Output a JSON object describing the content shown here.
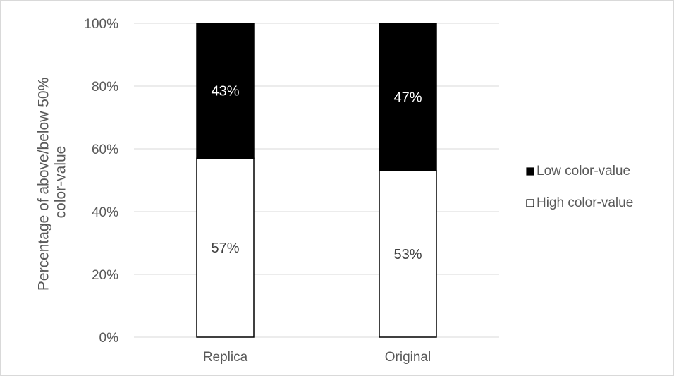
{
  "chart_data": {
    "type": "bar",
    "stacked": true,
    "categories": [
      "Replica",
      "Original"
    ],
    "series": [
      {
        "name": "High color-value",
        "values": [
          57,
          53
        ],
        "labels": [
          "57%",
          "53%"
        ],
        "color": "#ffffff"
      },
      {
        "name": "Low color-value",
        "values": [
          43,
          47
        ],
        "labels": [
          "43%",
          "47%"
        ],
        "color": "#000000"
      }
    ],
    "ylabel_lines": [
      "Percentage of above/below 50%",
      "color-value"
    ],
    "ylim": [
      0,
      100
    ],
    "yticks": [
      {
        "value": 0,
        "label": "0%"
      },
      {
        "value": 20,
        "label": "20%"
      },
      {
        "value": 40,
        "label": "40%"
      },
      {
        "value": 60,
        "label": "60%"
      },
      {
        "value": 80,
        "label": "80%"
      },
      {
        "value": 100,
        "label": "100%"
      }
    ],
    "grid": true,
    "legend_position": "right",
    "legend": [
      {
        "label": "Low color-value",
        "color": "#000000"
      },
      {
        "label": "High color-value",
        "color": "#ffffff"
      }
    ]
  }
}
